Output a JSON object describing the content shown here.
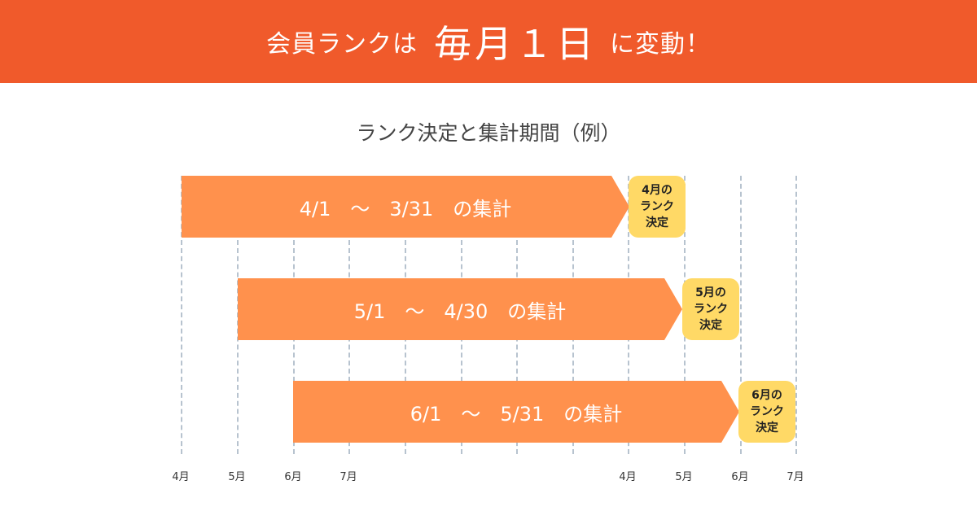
{
  "header": {
    "prefix": "会員ランクは",
    "emphasis": "毎月１日",
    "suffix": "に変動！",
    "background": "#f05a2b"
  },
  "subtitle": "ランク決定と集計期間（例）",
  "timeline": {
    "months": [
      "4月",
      "5月",
      "6月",
      "7月",
      "4月",
      "5月",
      "6月",
      "7月"
    ]
  },
  "periods": [
    {
      "text": "4/1　～　3/31　の集計",
      "badge": "4月の\nランク\n決定"
    },
    {
      "text": "5/1　～　4/30　の集計",
      "badge": "5月の\nランク\n決定"
    },
    {
      "text": "6/1　～　5/31　の集計",
      "badge": "6月の\nランク\n決定"
    }
  ],
  "colors": {
    "bar": "#ff914d",
    "badge": "#ffd966",
    "gridline": "#b7c3cf"
  }
}
